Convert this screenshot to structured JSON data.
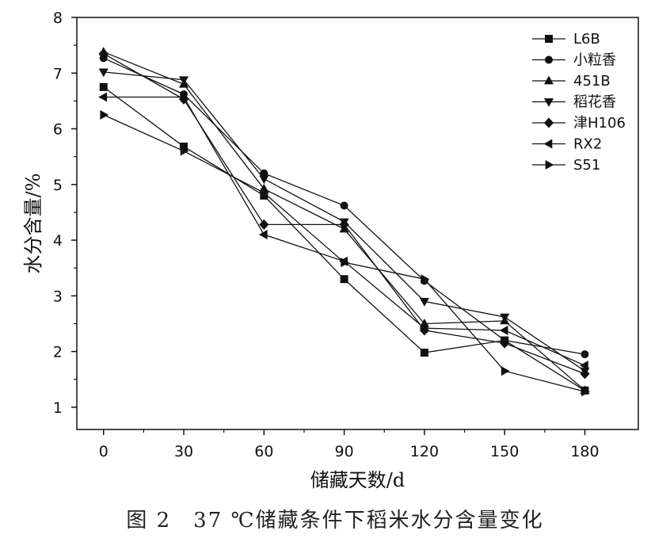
{
  "caption": "图 2　37 ℃储藏条件下稻米水分含量变化",
  "chart_data": {
    "type": "line",
    "xlabel": "储藏天数/d",
    "ylabel": "水分含量/%",
    "x": [
      0,
      30,
      60,
      90,
      120,
      150,
      180
    ],
    "xlim": [
      -10,
      200
    ],
    "ylim": [
      0.6,
      8
    ],
    "xticks": [
      0,
      30,
      60,
      90,
      120,
      150,
      180
    ],
    "yticks": [
      1,
      2,
      3,
      4,
      5,
      6,
      7,
      8
    ],
    "grid": false,
    "legend_position": "top-right",
    "series": [
      {
        "name": "L6B",
        "marker": "square",
        "values": [
          6.75,
          5.68,
          4.8,
          3.3,
          1.98,
          2.2,
          1.3
        ]
      },
      {
        "name": "小粒香",
        "marker": "circle",
        "values": [
          7.27,
          6.62,
          5.2,
          4.62,
          3.27,
          2.2,
          1.95
        ]
      },
      {
        "name": "451B",
        "marker": "triangle-up",
        "values": [
          7.38,
          6.8,
          4.92,
          4.2,
          2.5,
          2.55,
          1.3
        ]
      },
      {
        "name": "稻花香",
        "marker": "triangle-down",
        "values": [
          7.02,
          6.88,
          5.1,
          4.33,
          2.9,
          2.62,
          1.65
        ]
      },
      {
        "name": "津H106",
        "marker": "diamond",
        "values": [
          7.35,
          6.53,
          4.28,
          4.28,
          2.38,
          2.15,
          1.6
        ]
      },
      {
        "name": "RX2",
        "marker": "triangle-left",
        "values": [
          6.57,
          6.57,
          4.1,
          3.62,
          2.42,
          2.38,
          1.75
        ]
      },
      {
        "name": "S51",
        "marker": "triangle-right",
        "values": [
          6.25,
          5.6,
          4.85,
          3.6,
          3.3,
          1.65,
          1.28
        ]
      }
    ]
  }
}
